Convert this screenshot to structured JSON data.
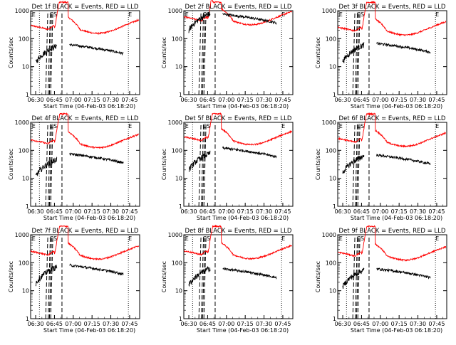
{
  "colors": {
    "events": "#000000",
    "lld": "#ff0000",
    "background": "#ffffff"
  },
  "panel_title_suffix": "BLACK = Events, RED = LLD",
  "ylabel": "Counts/sec",
  "xlabel": "Start Time (04-Feb-03 06:18:20)",
  "chart_data": [
    {
      "type": "line",
      "title": "Det 1f BLACK = Events, RED = LLD",
      "xlabel": "Start Time (04-Feb-03 06:18:20)",
      "ylabel": "Counts/sec",
      "yscale": "log",
      "ylim": [
        1,
        1000
      ],
      "xlim": [
        "06:26",
        "07:53"
      ],
      "x_ticks": [
        "06:30",
        "06:45",
        "07:00",
        "07:15",
        "07:30",
        "07:45"
      ],
      "y_ticks": [
        "1",
        "10",
        "100",
        "1000"
      ],
      "lld_level": 310,
      "events_level": 45,
      "events_pre_level": 35,
      "events_start": "06:30",
      "dotted_lines": [
        "06:33",
        "07:44"
      ],
      "dashed_lines": [
        "06:38",
        "06:40",
        "06:41",
        "06:42",
        "06:51"
      ],
      "markers": [
        {
          "label": "E",
          "x": "06:27"
        },
        {
          "label": "CS",
          "x": "06:41"
        },
        {
          "label": "E",
          "x": "07:44"
        }
      ]
    },
    {
      "type": "line",
      "title": "Det 2f BLACK = Events, RED = LLD",
      "xlabel": "Start Time (04-Feb-03 06:18:20)",
      "ylabel": "Counts/sec",
      "yscale": "log",
      "ylim": [
        1,
        1000
      ],
      "xlim": [
        "06:26",
        "07:53"
      ],
      "x_ticks": [
        "06:30",
        "06:45",
        "07:00",
        "07:15",
        "07:30",
        "07:45"
      ],
      "y_ticks": [
        "1",
        "10",
        "100",
        "1000"
      ],
      "lld_level": 630,
      "events_level": 560,
      "events_pre_level": 500,
      "events_start": "06:30",
      "dotted_lines": [
        "06:33",
        "07:44"
      ],
      "dashed_lines": [
        "06:38",
        "06:40",
        "06:41",
        "06:42",
        "06:51"
      ],
      "markers": [
        {
          "label": "E",
          "x": "06:27"
        },
        {
          "label": "CS",
          "x": "06:41"
        },
        {
          "label": "E",
          "x": "07:44"
        }
      ]
    },
    {
      "type": "line",
      "title": "Det 3f BLACK = Events, RED = LLD",
      "xlabel": "Start Time (04-Feb-03 06:18:20)",
      "ylabel": "Counts/sec",
      "yscale": "log",
      "ylim": [
        1,
        1000
      ],
      "xlim": [
        "06:26",
        "07:53"
      ],
      "x_ticks": [
        "06:30",
        "06:45",
        "07:00",
        "07:15",
        "07:30",
        "07:45"
      ],
      "y_ticks": [
        "1",
        "10",
        "100",
        "1000"
      ],
      "lld_level": 270,
      "events_level": 50,
      "events_pre_level": 38,
      "events_start": "06:30",
      "dotted_lines": [
        "06:33",
        "07:44"
      ],
      "dashed_lines": [
        "06:38",
        "06:40",
        "06:41",
        "06:42",
        "06:51"
      ],
      "markers": [
        {
          "label": "E",
          "x": "06:27"
        },
        {
          "label": "CS",
          "x": "06:41"
        },
        {
          "label": "E",
          "x": "07:44"
        }
      ]
    },
    {
      "type": "line",
      "title": "Det 4f BLACK = Events, RED = LLD",
      "xlabel": "Start Time (04-Feb-03 06:18:20)",
      "ylabel": "Counts/sec",
      "yscale": "log",
      "ylim": [
        1,
        1000
      ],
      "xlim": [
        "06:26",
        "07:53"
      ],
      "x_ticks": [
        "06:30",
        "06:45",
        "07:00",
        "07:15",
        "07:30",
        "07:45"
      ],
      "y_ticks": [
        "1",
        "10",
        "100",
        "1000"
      ],
      "lld_level": 250,
      "events_level": 55,
      "events_pre_level": 30,
      "events_start": "06:30",
      "dotted_lines": [
        "06:33",
        "07:44"
      ],
      "dashed_lines": [
        "06:38",
        "06:40",
        "06:41",
        "06:42",
        "06:51"
      ],
      "markers": [
        {
          "label": "E",
          "x": "06:27"
        },
        {
          "label": "CS",
          "x": "06:41"
        },
        {
          "label": "E",
          "x": "07:44"
        }
      ]
    },
    {
      "type": "line",
      "title": "Det 5f BLACK = Events, RED = LLD",
      "xlabel": "Start Time (04-Feb-03 06:18:20)",
      "ylabel": "Counts/sec",
      "yscale": "log",
      "ylim": [
        1,
        1000
      ],
      "xlim": [
        "06:26",
        "07:53"
      ],
      "x_ticks": [
        "06:30",
        "06:45",
        "07:00",
        "07:15",
        "07:30",
        "07:45"
      ],
      "y_ticks": [
        "1",
        "10",
        "100",
        "1000"
      ],
      "lld_level": 320,
      "events_level": 90,
      "events_pre_level": 50,
      "events_start": "06:30",
      "dotted_lines": [
        "06:33",
        "07:44"
      ],
      "dashed_lines": [
        "06:38",
        "06:40",
        "06:41",
        "06:42",
        "06:51"
      ],
      "markers": [
        {
          "label": "E",
          "x": "06:27"
        },
        {
          "label": "CS",
          "x": "06:41"
        },
        {
          "label": "E",
          "x": "07:44"
        }
      ]
    },
    {
      "type": "line",
      "title": "Det 6f BLACK = Events, RED = LLD",
      "xlabel": "Start Time (04-Feb-03 06:18:20)",
      "ylabel": "Counts/sec",
      "yscale": "log",
      "ylim": [
        1,
        1000
      ],
      "xlim": [
        "06:26",
        "07:53"
      ],
      "x_ticks": [
        "06:30",
        "06:45",
        "07:00",
        "07:15",
        "07:30",
        "07:45"
      ],
      "y_ticks": [
        "1",
        "10",
        "100",
        "1000"
      ],
      "lld_level": 280,
      "events_level": 50,
      "events_pre_level": 40,
      "events_start": "06:30",
      "dotted_lines": [
        "06:33",
        "07:44"
      ],
      "dashed_lines": [
        "06:38",
        "06:40",
        "06:41",
        "06:42",
        "06:51"
      ],
      "markers": [
        {
          "label": "E",
          "x": "06:27"
        },
        {
          "label": "CS",
          "x": "06:41"
        },
        {
          "label": "E",
          "x": "07:44"
        }
      ]
    },
    {
      "type": "line",
      "title": "Det 7f BLACK = Events, RED = LLD",
      "xlabel": "Start Time (04-Feb-03 06:18:20)",
      "ylabel": "Counts/sec",
      "yscale": "log",
      "ylim": [
        1,
        1000
      ],
      "xlim": [
        "06:26",
        "07:53"
      ],
      "x_ticks": [
        "06:30",
        "06:45",
        "07:00",
        "07:15",
        "07:30",
        "07:45"
      ],
      "y_ticks": [
        "1",
        "10",
        "100",
        "1000"
      ],
      "lld_level": 270,
      "events_level": 60,
      "events_pre_level": 45,
      "events_start": "06:30",
      "dotted_lines": [
        "06:33",
        "07:44"
      ],
      "dashed_lines": [
        "06:38",
        "06:40",
        "06:41",
        "06:42",
        "06:51"
      ],
      "markers": [
        {
          "label": "E",
          "x": "06:27"
        },
        {
          "label": "CS",
          "x": "06:41"
        },
        {
          "label": "E",
          "x": "07:44"
        }
      ]
    },
    {
      "type": "line",
      "title": "Det 8f BLACK = Events, RED = LLD",
      "xlabel": "Start Time (04-Feb-03 06:18:20)",
      "ylabel": "Counts/sec",
      "yscale": "log",
      "ylim": [
        1,
        1000
      ],
      "xlim": [
        "06:26",
        "07:53"
      ],
      "x_ticks": [
        "06:30",
        "06:45",
        "07:00",
        "07:15",
        "07:30",
        "07:45"
      ],
      "y_ticks": [
        "1",
        "10",
        "100",
        "1000"
      ],
      "lld_level": 280,
      "events_level": 45,
      "events_pre_level": 40,
      "events_start": "06:30",
      "dotted_lines": [
        "06:33",
        "07:44"
      ],
      "dashed_lines": [
        "06:38",
        "06:40",
        "06:41",
        "06:42",
        "06:51"
      ],
      "markers": [
        {
          "label": "E",
          "x": "06:27"
        },
        {
          "label": "CS",
          "x": "06:41"
        },
        {
          "label": "E",
          "x": "07:44"
        }
      ]
    },
    {
      "type": "line",
      "title": "Det 9f BLACK = Events, RED = LLD",
      "xlabel": "Start Time (04-Feb-03 06:18:20)",
      "ylabel": "Counts/sec",
      "yscale": "log",
      "ylim": [
        1,
        1000
      ],
      "xlim": [
        "06:26",
        "07:53"
      ],
      "x_ticks": [
        "06:30",
        "06:45",
        "07:00",
        "07:15",
        "07:30",
        "07:45"
      ],
      "y_ticks": [
        "1",
        "10",
        "100",
        "1000"
      ],
      "lld_level": 250,
      "events_level": 45,
      "events_pre_level": 35,
      "events_start": "06:30",
      "dotted_lines": [
        "06:33",
        "07:44"
      ],
      "dashed_lines": [
        "06:38",
        "06:40",
        "06:41",
        "06:42",
        "06:51"
      ],
      "markers": [
        {
          "label": "E",
          "x": "06:27"
        },
        {
          "label": "CS",
          "x": "06:41"
        },
        {
          "label": "E",
          "x": "07:44"
        }
      ]
    }
  ]
}
